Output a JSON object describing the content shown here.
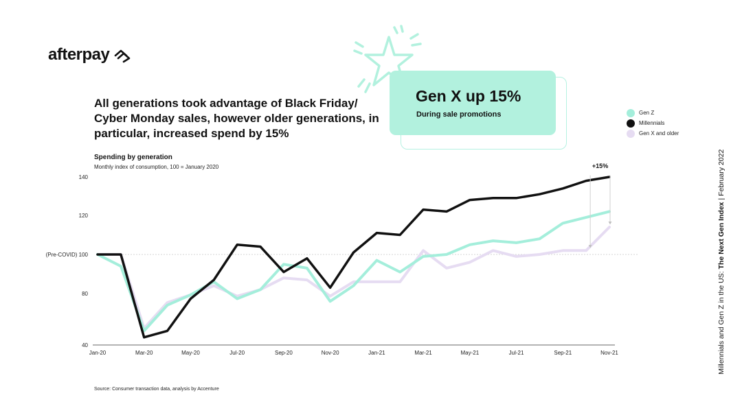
{
  "brand": {
    "name": "afterpay"
  },
  "headline": "All generations took advantage of Black Friday/ Cyber Monday sales, however older generations, in particular, increased spend by 15%",
  "callout": {
    "title": "Gen X up 15%",
    "subtitle": "During sale promotions"
  },
  "side_caption": {
    "prefix": "Millennials and Gen Z in the US: ",
    "bold": "The Next Gen Index",
    "suffix": "  |  February 2022"
  },
  "source": "Source: Consumer transaction data, analysis by Accenture",
  "colors": {
    "genz": "#a4eedb",
    "millennials": "#111111",
    "genx": "#e6dcf2",
    "accent": "#b2f1de"
  },
  "chart_data": {
    "type": "line",
    "title": "Spending by generation",
    "subtitle": "Monthly index of consumption, 100 = January 2020",
    "x": [
      "Jan-20",
      "Feb-20",
      "Mar-20",
      "Apr-20",
      "May-20",
      "Jun-20",
      "Jul-20",
      "Aug-20",
      "Sep-20",
      "Oct-20",
      "Nov-20",
      "Dec-20",
      "Jan-21",
      "Feb-21",
      "Mar-21",
      "Apr-21",
      "May-21",
      "Jun-21",
      "Jul-21",
      "Aug-21",
      "Sep-21",
      "Oct-21",
      "Nov-21"
    ],
    "tick_labels": [
      "Jan-20",
      "Mar-20",
      "May-20",
      "Jul-20",
      "Sep-20",
      "Nov-20",
      "Jan-21",
      "Mar-21",
      "May-21",
      "Jul-21",
      "Sep-21",
      "Nov-21"
    ],
    "y_ticks": [
      {
        "value": 140,
        "label": "140"
      },
      {
        "value": 120,
        "label": "120"
      },
      {
        "value": 100,
        "label": "(Pre-COVID) 100"
      },
      {
        "value": 80,
        "label": "80"
      },
      {
        "value": 40,
        "label": "40"
      }
    ],
    "ylim": [
      40,
      140
    ],
    "reference_line": 100,
    "series": [
      {
        "name": "Gen Z",
        "key": "genz",
        "values": [
          100,
          94,
          51,
          71,
          79,
          86,
          76,
          82,
          95,
          93,
          74,
          84,
          97,
          91,
          99,
          100,
          105,
          107,
          106,
          108,
          116,
          119,
          122
        ]
      },
      {
        "name": "Millennials",
        "key": "millennials",
        "values": [
          100,
          100,
          46,
          51,
          76,
          87,
          105,
          104,
          91,
          98,
          83,
          101,
          111,
          110,
          123,
          122,
          128,
          129,
          129,
          131,
          134,
          138,
          140
        ]
      },
      {
        "name": "Gen X and older",
        "key": "genx",
        "values": [
          100,
          100,
          53,
          73,
          79,
          84,
          78,
          82,
          88,
          87,
          78,
          86,
          86,
          86,
          102,
          93,
          96,
          102,
          99,
          100,
          102,
          102,
          114
        ]
      }
    ],
    "annotation": "+15%"
  }
}
